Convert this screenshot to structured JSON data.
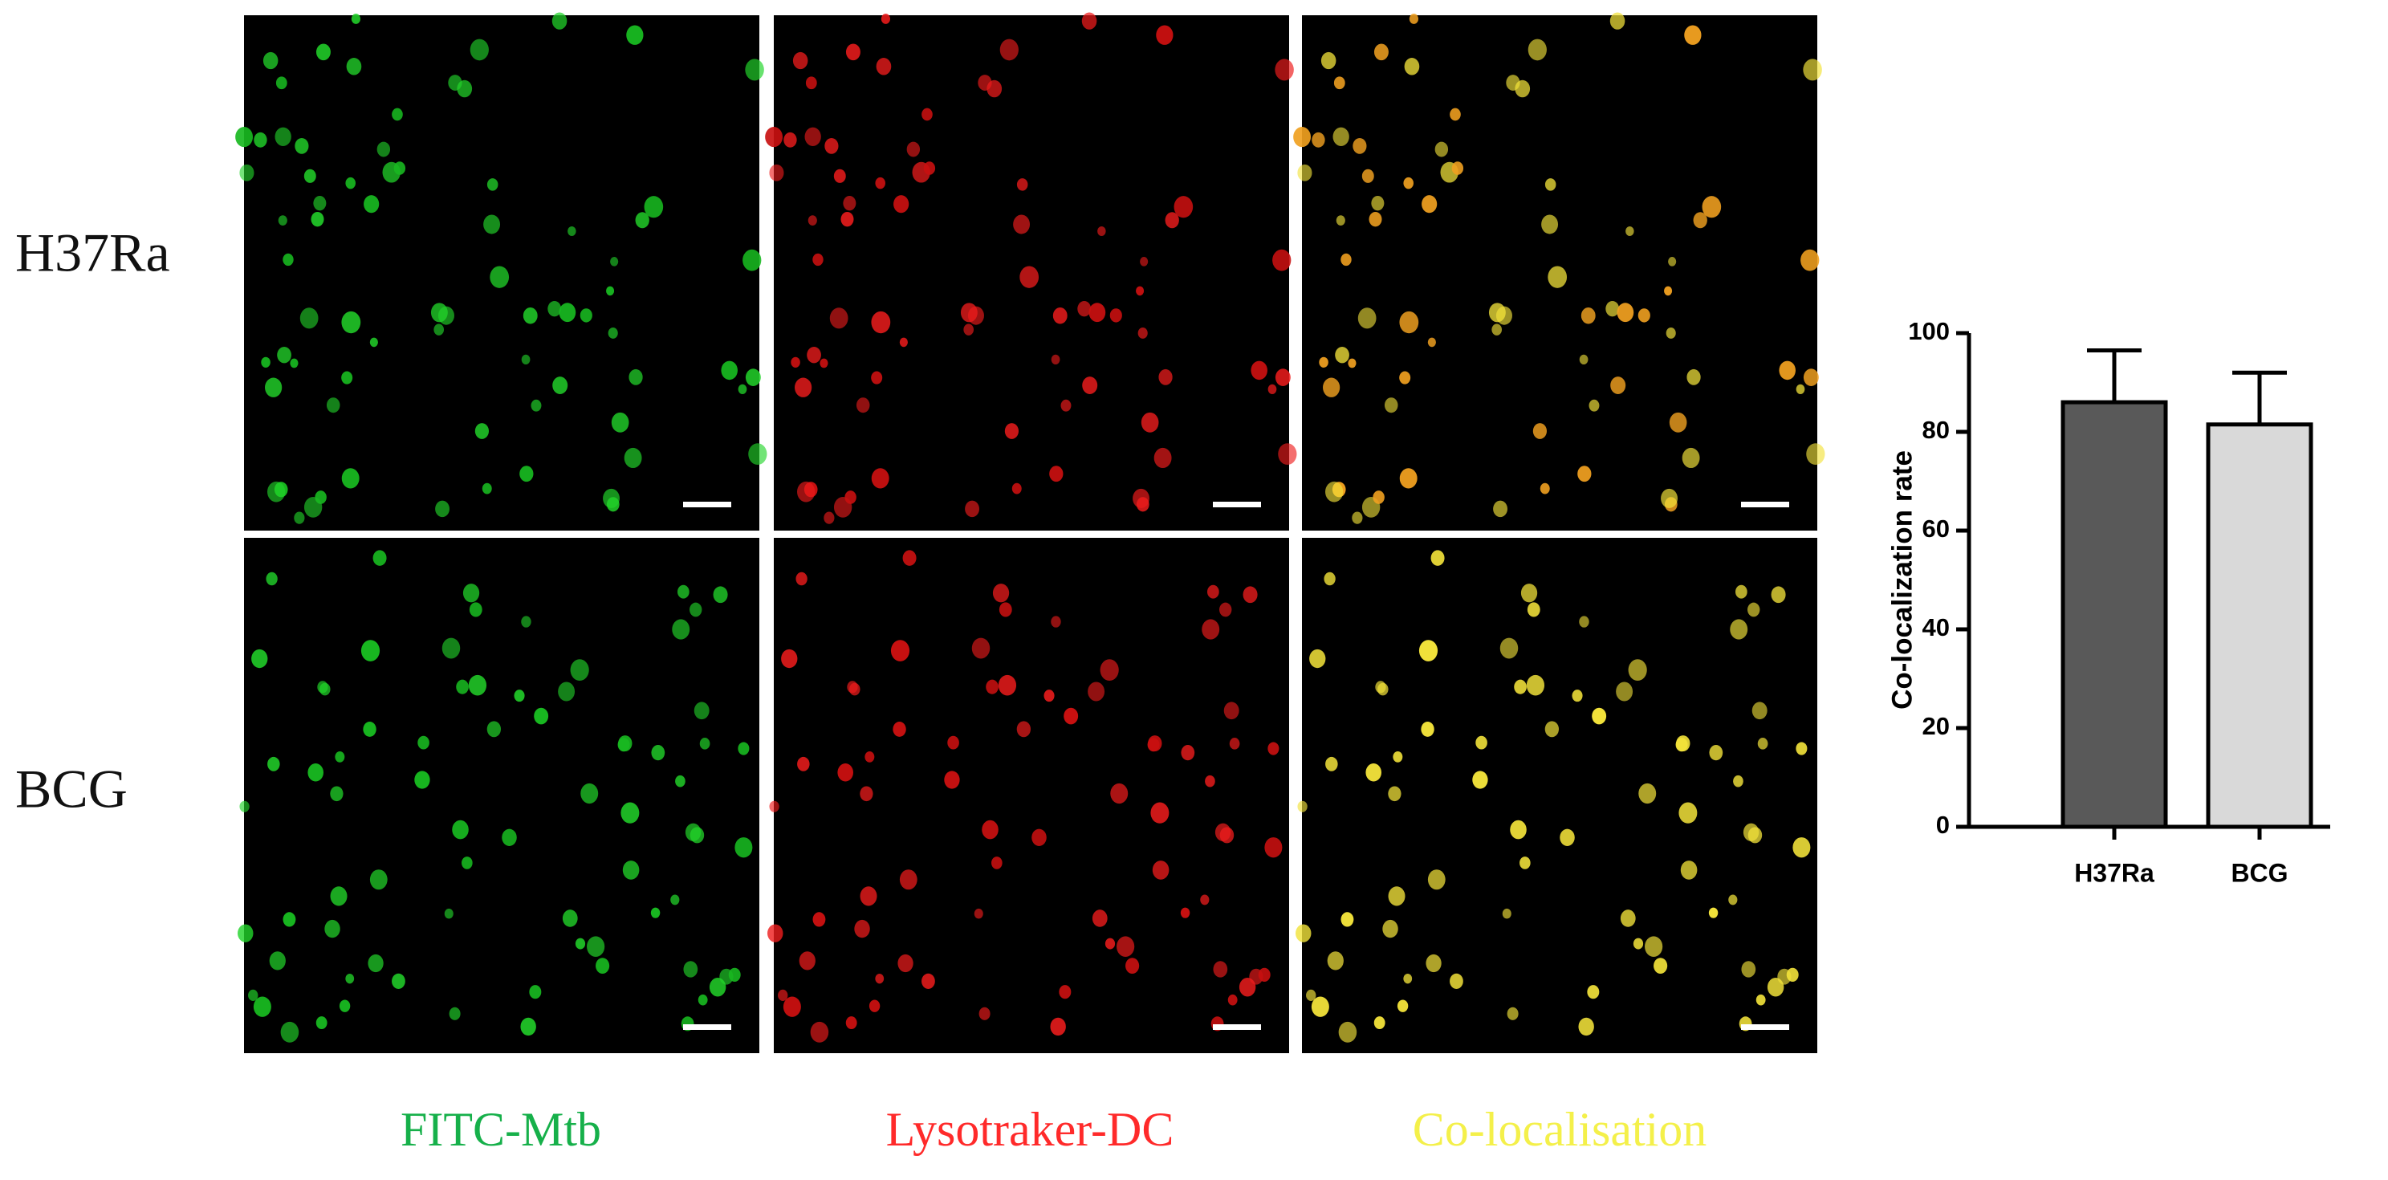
{
  "figure": {
    "row_labels": [
      "H37Ra",
      "BCG"
    ],
    "column_labels": [
      "FITC-Mtb",
      "Lysotraker-DC",
      "Co-localisation"
    ]
  },
  "chart_data": {
    "type": "bar",
    "y_label": "Co-localization rate",
    "categories": [
      "H37Ra",
      "BCG"
    ],
    "values": [
      86,
      81.5
    ],
    "errors": [
      10.5,
      10.5
    ],
    "colors": [
      "#595959",
      "#d9d9d9"
    ],
    "ylim": [
      0,
      100
    ],
    "yticks": [
      0,
      20,
      40,
      60,
      80,
      100
    ]
  }
}
